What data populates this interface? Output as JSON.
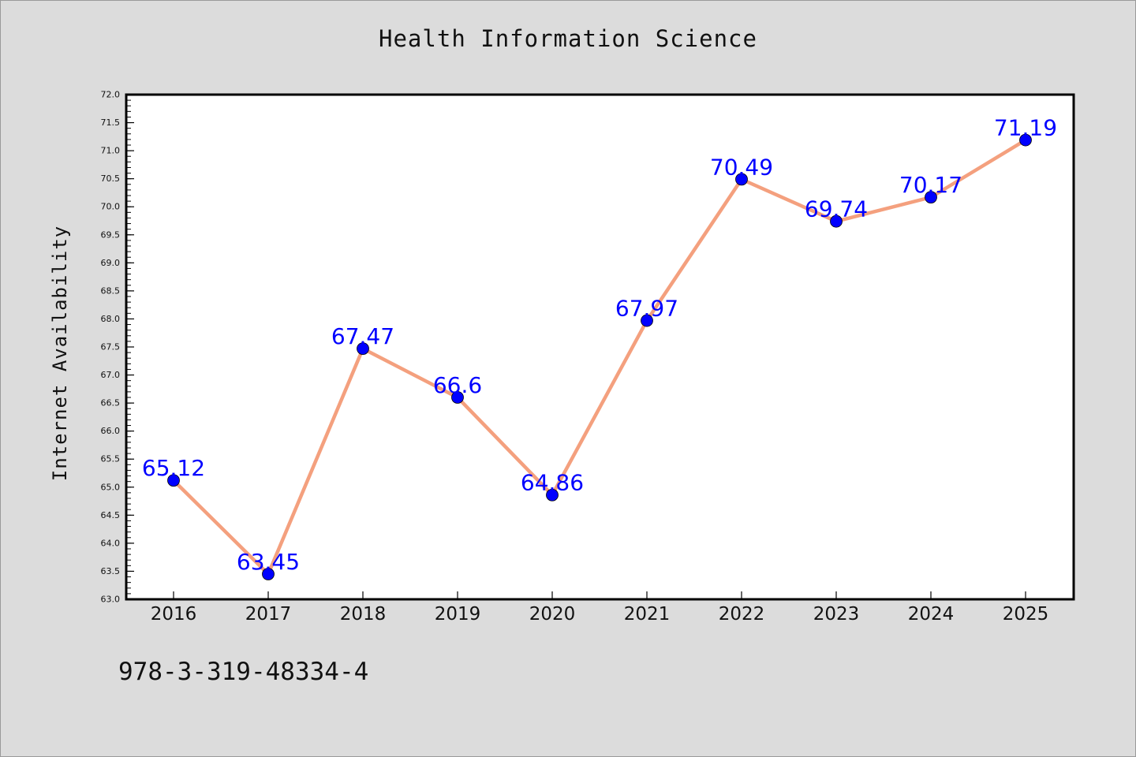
{
  "title": "Health Information Science",
  "footer_code": "978-3-319-48334-4",
  "colors": {
    "background": "#dcdcdc",
    "plot_background": "#ffffff",
    "line": "#f4a07e",
    "marker": "#0000ff",
    "label": "#0000ff"
  },
  "chart_data": {
    "type": "line",
    "title": "Health Information Science",
    "xlabel": "",
    "ylabel": "Internet Availability",
    "categories": [
      "2016",
      "2017",
      "2018",
      "2019",
      "2020",
      "2021",
      "2022",
      "2023",
      "2024",
      "2025"
    ],
    "series": [
      {
        "values": [
          65.12,
          63.45,
          67.47,
          66.6,
          64.86,
          67.97,
          70.49,
          69.74,
          70.17,
          71.19
        ],
        "data_labels": [
          "65.12",
          "63.45",
          "67.47",
          "66.6",
          "64.86",
          "67.97",
          "70.49",
          "69.74",
          "70.17",
          "71.19"
        ]
      }
    ],
    "ylim": [
      63.0,
      72.0
    ],
    "yticks": [
      "63.0",
      "63.5",
      "64.0",
      "64.5",
      "65.0",
      "65.5",
      "66.0",
      "66.5",
      "67.0",
      "67.5",
      "68.0",
      "68.5",
      "69.0",
      "69.5",
      "70.0",
      "70.5",
      "71.0",
      "71.5",
      "72.0"
    ],
    "grid": false,
    "legend": "none"
  }
}
